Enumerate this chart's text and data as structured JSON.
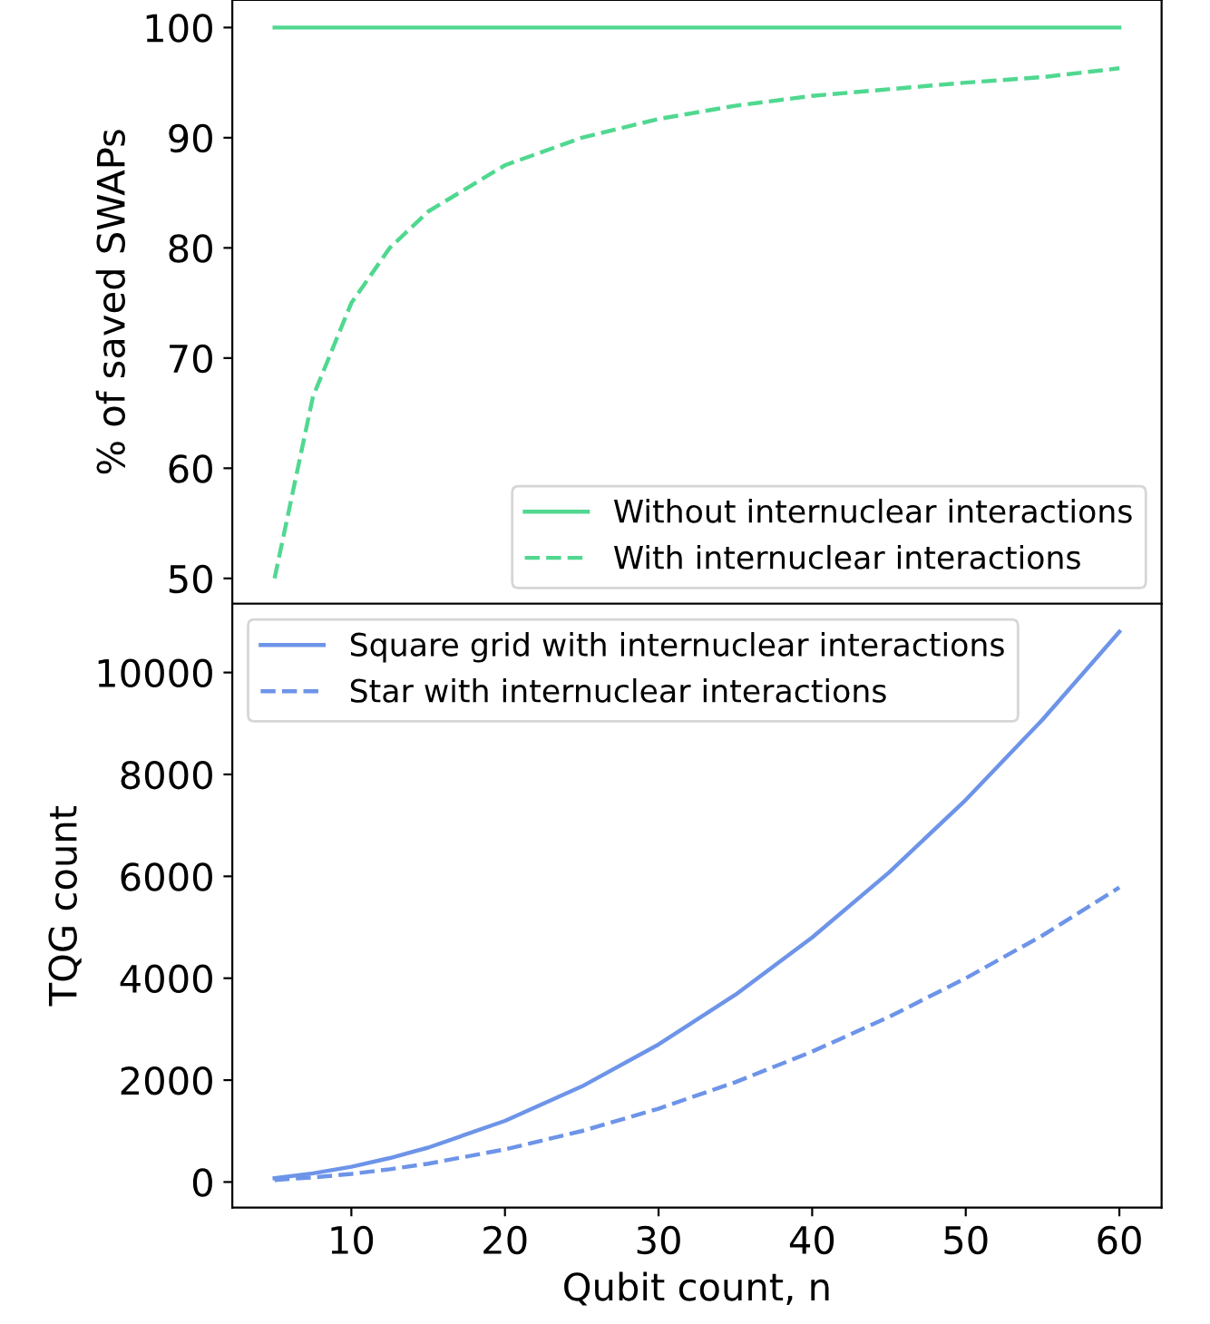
{
  "chart_data": [
    {
      "type": "line",
      "ylabel": "% of saved SWAPs",
      "x": [
        5,
        7.5,
        10,
        12.5,
        15,
        20,
        25,
        30,
        35,
        40,
        45,
        50,
        55,
        60
      ],
      "xlim": [
        2.25,
        62.75
      ],
      "xticks": [
        10,
        20,
        30,
        40,
        50,
        60
      ],
      "ylim": [
        47.7,
        102.5
      ],
      "yticks": [
        50,
        60,
        70,
        80,
        90,
        100
      ],
      "tick_labels": "y",
      "grid": false,
      "legend": "bottom right",
      "marker": "none",
      "series": [
        {
          "name": "Without internuclear interactions",
          "color": "#50d890",
          "line_style": "solid",
          "values": [
            100,
            100,
            100,
            100,
            100,
            100,
            100,
            100,
            100,
            100,
            100,
            100,
            100,
            100
          ]
        },
        {
          "name": "With internuclear interactions",
          "color": "#50d890",
          "line_style": "dashed",
          "values": [
            50,
            66.5,
            75,
            80,
            83.3,
            87.5,
            90,
            91.7,
            92.9,
            93.8,
            94.4,
            95,
            95.5,
            96.3
          ]
        }
      ]
    },
    {
      "type": "line",
      "xlabel": "Qubit count, n",
      "ylabel": "TQG count",
      "x": [
        5,
        7.5,
        10,
        12.5,
        15,
        20,
        25,
        30,
        35,
        40,
        45,
        50,
        55,
        60
      ],
      "xlim": [
        2.25,
        62.75
      ],
      "xticks": [
        10,
        20,
        30,
        40,
        50,
        60
      ],
      "ylim": [
        -500,
        11350
      ],
      "yticks": [
        0,
        2000,
        4000,
        6000,
        8000,
        10000
      ],
      "grid": false,
      "legend": "top left",
      "marker": "none",
      "series": [
        {
          "name": "Square grid with internuclear interactions",
          "color": "#6d94e8",
          "line_style": "solid",
          "values": [
            75,
            170,
            300,
            470,
            675,
            1200,
            1875,
            2700,
            3675,
            4800,
            6075,
            7500,
            9075,
            10800
          ]
        },
        {
          "name": "Star with internuclear interactions",
          "color": "#6d94e8",
          "line_style": "dashed",
          "values": [
            40,
            90,
            160,
            250,
            360,
            640,
            1000,
            1440,
            1960,
            2560,
            3240,
            4000,
            4840,
            5780
          ]
        }
      ]
    }
  ]
}
